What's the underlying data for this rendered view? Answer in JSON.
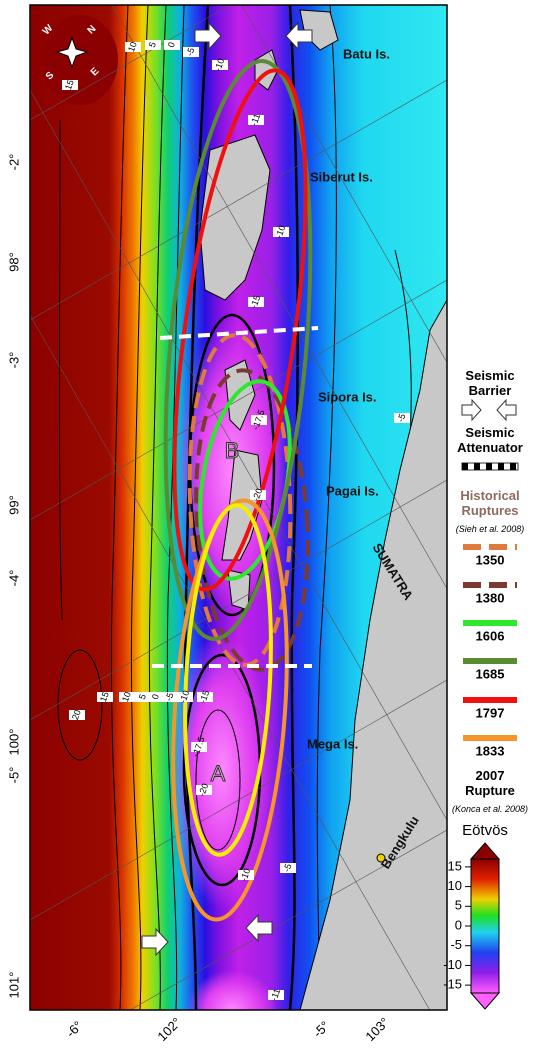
{
  "map": {
    "compass": [
      "N",
      "E",
      "S",
      "W"
    ],
    "places": [
      "Batu Is.",
      "Siberut Is.",
      "Sipora Is.",
      "Pagai Is.",
      "Mega Is.",
      "SUMATRA",
      "Bengkulu"
    ],
    "zones": [
      "A",
      "B"
    ],
    "contour_labels": [
      "10",
      "5",
      "0",
      "-5",
      "-10",
      "15",
      "-11",
      "-10",
      "-15",
      "-17.5",
      "-20",
      "-5",
      "20",
      "15",
      "10",
      "5",
      "0",
      "-5",
      "-10",
      "-15",
      "-17.5",
      "-20",
      "-10",
      "-5",
      "-11"
    ],
    "lat_labels": [
      "-2°",
      "98°",
      "-3°",
      "99°",
      "-4°",
      "100°",
      "-5°",
      "101°"
    ],
    "bottom_labels": [
      "-6°",
      "102°",
      "-5°",
      "103°"
    ]
  },
  "legend": {
    "barrier": "Seismic Barrier",
    "attenuator": "Seismic Attenuator",
    "historical": "Historical Ruptures",
    "historical_source": "(Sieh et al. 2008)",
    "ruptures": [
      {
        "year": "1350",
        "color": "#e07a3c",
        "dashed": true
      },
      {
        "year": "1380",
        "color": "#7a3a32",
        "dashed": true
      },
      {
        "year": "1606",
        "color": "#2ee82e",
        "dashed": false
      },
      {
        "year": "1685",
        "color": "#5b8a35",
        "dashed": false
      },
      {
        "year": "1797",
        "color": "#f01010",
        "dashed": false
      },
      {
        "year": "1833",
        "color": "#f5962a",
        "dashed": false
      }
    ],
    "recent": "2007 Rupture",
    "recent_color": "#f5f000",
    "recent_source": "(Konca et al. 2008)"
  },
  "colorbar": {
    "title": "Eötvös",
    "ticks": [
      15,
      10,
      5,
      0,
      -5,
      -10,
      -15
    ],
    "lim": [
      -17,
      17
    ]
  }
}
